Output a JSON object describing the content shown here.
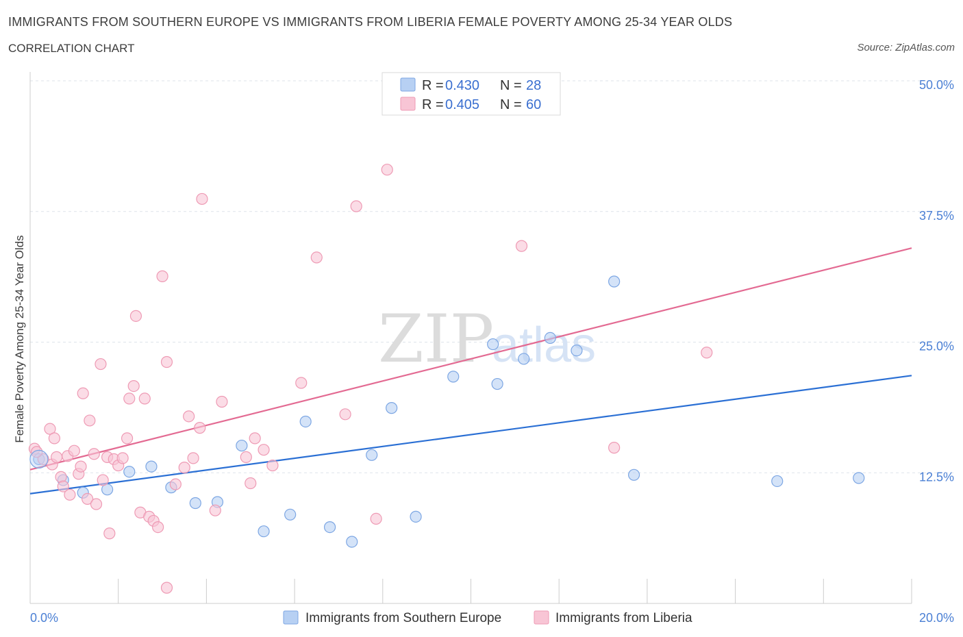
{
  "header": {
    "title": "IMMIGRANTS FROM SOUTHERN EUROPE VS IMMIGRANTS FROM LIBERIA FEMALE POVERTY AMONG 25-34 YEAR OLDS",
    "subtitle": "CORRELATION CHART",
    "source": "Source: ZipAtlas.com"
  },
  "watermark": {
    "zip": "ZIP",
    "atlas": "atlas"
  },
  "colors": {
    "blue_fill": "#b7d0f3",
    "blue_stroke": "#7ca6e3",
    "blue_line": "#2a6fd4",
    "pink_fill": "#f8c5d5",
    "pink_stroke": "#ee9ab4",
    "pink_line": "#e36a92",
    "grid": "#dde3ea",
    "tick_text": "#4a7fd4"
  },
  "chart_data": {
    "type": "scatter",
    "title": "IMMIGRANTS FROM SOUTHERN EUROPE VS IMMIGRANTS FROM LIBERIA FEMALE POVERTY AMONG 25-34 YEAR OLDS",
    "xlabel": "",
    "ylabel": "Female Poverty Among 25-34 Year Olds",
    "xlim": [
      0,
      20
    ],
    "ylim": [
      0,
      50
    ],
    "x_tick_labels": [
      "0.0%",
      "20.0%"
    ],
    "y_ticks": [
      12.5,
      25.0,
      37.5,
      50.0
    ],
    "y_tick_labels": [
      "12.5%",
      "25.0%",
      "37.5%",
      "50.0%"
    ],
    "grid": true,
    "legend": {
      "position": "top-center",
      "entries": [
        {
          "r_label": "R = ",
          "r_value": "0.430",
          "n_label": "N = ",
          "n_value": "28"
        },
        {
          "r_label": "R = ",
          "r_value": "0.405",
          "n_label": "N = ",
          "n_value": "60"
        }
      ]
    },
    "series": [
      {
        "name": "Immigrants from Southern Europe",
        "color": "blue",
        "trend": {
          "x": [
            0,
            20
          ],
          "y": [
            10.5,
            21.8
          ]
        },
        "points": [
          [
            0.2,
            13.8
          ],
          [
            0.75,
            11.8
          ],
          [
            1.2,
            10.6
          ],
          [
            1.75,
            10.9
          ],
          [
            2.25,
            12.6
          ],
          [
            2.75,
            13.1
          ],
          [
            3.2,
            11.1
          ],
          [
            3.75,
            9.6
          ],
          [
            4.25,
            9.7
          ],
          [
            4.8,
            15.1
          ],
          [
            5.3,
            6.9
          ],
          [
            5.9,
            8.5
          ],
          [
            6.25,
            17.4
          ],
          [
            6.8,
            7.3
          ],
          [
            7.3,
            5.9
          ],
          [
            7.75,
            14.2
          ],
          [
            8.2,
            18.7
          ],
          [
            8.75,
            8.3
          ],
          [
            9.6,
            21.7
          ],
          [
            10.5,
            24.8
          ],
          [
            10.6,
            21.0
          ],
          [
            11.2,
            23.4
          ],
          [
            11.8,
            25.4
          ],
          [
            12.4,
            24.2
          ],
          [
            13.25,
            30.8
          ],
          [
            13.7,
            12.3
          ],
          [
            16.95,
            11.7
          ],
          [
            18.8,
            12.0
          ]
        ]
      },
      {
        "name": "Immigrants from Liberia",
        "color": "pink",
        "trend": {
          "x": [
            0,
            20
          ],
          "y": [
            12.8,
            34.0
          ]
        },
        "points": [
          [
            0.1,
            14.8
          ],
          [
            0.3,
            13.8
          ],
          [
            0.45,
            16.7
          ],
          [
            0.5,
            13.3
          ],
          [
            0.55,
            15.8
          ],
          [
            0.7,
            12.1
          ],
          [
            0.75,
            11.2
          ],
          [
            0.85,
            14.1
          ],
          [
            0.9,
            10.4
          ],
          [
            1.0,
            14.6
          ],
          [
            1.1,
            12.4
          ],
          [
            1.15,
            13.1
          ],
          [
            1.2,
            20.1
          ],
          [
            1.3,
            10.0
          ],
          [
            1.35,
            17.5
          ],
          [
            1.45,
            14.3
          ],
          [
            1.5,
            9.5
          ],
          [
            1.6,
            22.9
          ],
          [
            1.65,
            11.8
          ],
          [
            1.75,
            14.0
          ],
          [
            1.8,
            6.7
          ],
          [
            1.9,
            13.8
          ],
          [
            2.0,
            13.2
          ],
          [
            2.1,
            13.9
          ],
          [
            2.2,
            15.8
          ],
          [
            2.25,
            19.6
          ],
          [
            2.35,
            20.8
          ],
          [
            2.4,
            27.5
          ],
          [
            2.5,
            8.7
          ],
          [
            2.6,
            19.6
          ],
          [
            2.7,
            8.3
          ],
          [
            2.8,
            7.9
          ],
          [
            2.9,
            7.3
          ],
          [
            3.0,
            31.3
          ],
          [
            3.1,
            1.5
          ],
          [
            3.1,
            23.1
          ],
          [
            3.3,
            11.4
          ],
          [
            3.6,
            17.9
          ],
          [
            3.7,
            13.9
          ],
          [
            3.85,
            16.8
          ],
          [
            3.9,
            38.7
          ],
          [
            4.2,
            8.9
          ],
          [
            4.35,
            19.3
          ],
          [
            4.9,
            14.0
          ],
          [
            5.0,
            11.5
          ],
          [
            5.1,
            15.8
          ],
          [
            5.3,
            14.7
          ],
          [
            5.5,
            13.2
          ],
          [
            6.15,
            21.1
          ],
          [
            6.5,
            33.1
          ],
          [
            7.15,
            18.1
          ],
          [
            7.4,
            38.0
          ],
          [
            7.85,
            8.1
          ],
          [
            8.1,
            41.5
          ],
          [
            11.15,
            34.2
          ],
          [
            13.25,
            14.9
          ],
          [
            15.35,
            24.0
          ],
          [
            0.15,
            14.5
          ],
          [
            0.6,
            14.0
          ],
          [
            3.5,
            13.0
          ]
        ]
      }
    ]
  }
}
